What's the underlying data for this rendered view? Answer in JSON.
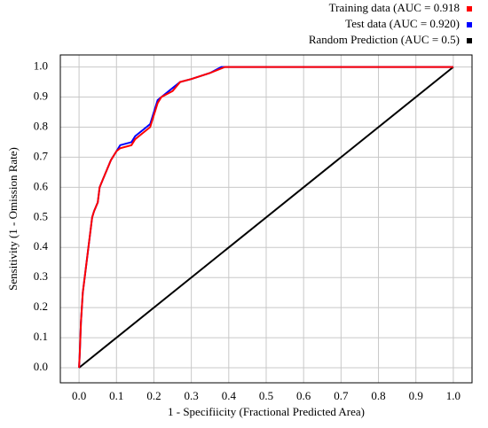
{
  "chart_data": {
    "type": "line",
    "xlabel": "1 - Specifiicity (Fractional Predicted Area)",
    "ylabel": "Sensitivity (1 - Omission Rate)",
    "xlim": [
      -0.05,
      1.05
    ],
    "ylim": [
      -0.05,
      1.04
    ],
    "xticks": [
      {
        "value": 0,
        "label": "0.0"
      },
      0.1,
      0.2,
      0.3,
      0.4,
      0.5,
      0.6,
      0.7,
      0.8,
      0.9,
      {
        "value": 1,
        "label": "1.0"
      }
    ],
    "yticks": [
      {
        "value": 0,
        "label": "0.0"
      },
      0.1,
      0.2,
      0.3,
      0.4,
      0.5,
      0.6,
      0.7,
      0.8,
      0.9,
      {
        "value": 1,
        "label": "1.0"
      }
    ],
    "grid": true,
    "legend": "top-right",
    "series": [
      {
        "name": "Training data (AUC = 0.918",
        "color": "#ff0000",
        "x": [
          0,
          0.002,
          0.005,
          0.01,
          0.015,
          0.02,
          0.025,
          0.03,
          0.035,
          0.04,
          0.05,
          0.055,
          0.065,
          0.075,
          0.085,
          0.1,
          0.11,
          0.14,
          0.15,
          0.17,
          0.19,
          0.2,
          0.21,
          0.22,
          0.25,
          0.27,
          0.3,
          0.35,
          0.39,
          1
        ],
        "values": [
          0,
          0.05,
          0.15,
          0.25,
          0.3,
          0.35,
          0.4,
          0.45,
          0.5,
          0.52,
          0.55,
          0.6,
          0.63,
          0.66,
          0.69,
          0.72,
          0.73,
          0.74,
          0.76,
          0.78,
          0.8,
          0.84,
          0.88,
          0.9,
          0.92,
          0.95,
          0.96,
          0.98,
          1,
          1
        ]
      },
      {
        "name": "Test data (AUC = 0.920)",
        "color": "#0000ff",
        "x": [
          0,
          0.002,
          0.005,
          0.01,
          0.015,
          0.02,
          0.025,
          0.03,
          0.035,
          0.04,
          0.05,
          0.055,
          0.065,
          0.075,
          0.085,
          0.1,
          0.11,
          0.14,
          0.15,
          0.17,
          0.19,
          0.2,
          0.21,
          0.22,
          0.25,
          0.27,
          0.3,
          0.35,
          0.38,
          1
        ],
        "values": [
          0,
          0.05,
          0.15,
          0.25,
          0.3,
          0.35,
          0.4,
          0.45,
          0.5,
          0.52,
          0.55,
          0.6,
          0.63,
          0.66,
          0.69,
          0.72,
          0.74,
          0.75,
          0.77,
          0.79,
          0.81,
          0.85,
          0.89,
          0.9,
          0.93,
          0.95,
          0.96,
          0.98,
          1,
          1
        ]
      },
      {
        "name": "Random Prediction (AUC = 0.5)",
        "color": "#000000",
        "x": [
          0,
          1
        ],
        "values": [
          0,
          1
        ]
      }
    ]
  }
}
